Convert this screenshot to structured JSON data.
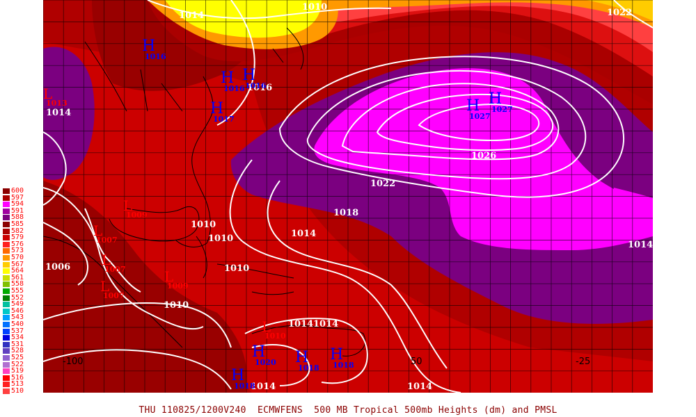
{
  "caption": {
    "valid_time": "THU 110825/1200V240",
    "model": "ECMWFENS",
    "title": "500 MB Tropical 500mb Heights (dm) and PMSL"
  },
  "colorbar": {
    "levels": [
      "600",
      "597",
      "594",
      "591",
      "588",
      "585",
      "582",
      "579",
      "576",
      "573",
      "570",
      "567",
      "564",
      "561",
      "558",
      "555",
      "552",
      "549",
      "546",
      "543",
      "540",
      "537",
      "534",
      "531",
      "528",
      "525",
      "522",
      "519",
      "516",
      "513",
      "510"
    ],
    "colors": [
      "#8b0000",
      "#aa0000",
      "#ff00ff",
      "#a000a0",
      "#7b0080",
      "#8b0000",
      "#aa0000",
      "#cc0000",
      "#ff2020",
      "#ff6a00",
      "#ff9900",
      "#ffcc00",
      "#ffff00",
      "#c8e000",
      "#80c000",
      "#00aa00",
      "#008000",
      "#00c0a0",
      "#00c8c8",
      "#00a0ff",
      "#0070ff",
      "#0040ff",
      "#0000e0",
      "#3030c0",
      "#6040c0",
      "#9060d0",
      "#b070d0",
      "#ff40c0",
      "#ff0000",
      "#ff2020",
      "#ff4040"
    ]
  },
  "map": {
    "longitude_labels": [
      "-100",
      "50",
      "-25"
    ],
    "isobar_labels": [
      "1010",
      "1014",
      "1022",
      "1014",
      "1016",
      "1017",
      "1018",
      "1026",
      "1022",
      "1018",
      "1014",
      "1014",
      "1010",
      "1010",
      "1010",
      "1010",
      "1014",
      "1014",
      "1014",
      "1014",
      "1014",
      "1006"
    ],
    "highs": [
      {
        "symbol": "H",
        "value": "1016"
      },
      {
        "symbol": "H",
        "value": "1016"
      },
      {
        "symbol": "H",
        "value": "1016"
      },
      {
        "symbol": "H",
        "value": "1017"
      },
      {
        "symbol": "H",
        "value": "1027"
      },
      {
        "symbol": "H",
        "value": "1027"
      },
      {
        "symbol": "H",
        "value": "1020"
      },
      {
        "symbol": "H",
        "value": "1018"
      },
      {
        "symbol": "H",
        "value": "1018"
      },
      {
        "symbol": "H",
        "value": "1018"
      }
    ],
    "lows": [
      {
        "symbol": "L",
        "value": "1013"
      },
      {
        "symbol": "L",
        "value": "1009"
      },
      {
        "symbol": "L",
        "value": "1007"
      },
      {
        "symbol": "L",
        "value": "1007"
      },
      {
        "symbol": "L",
        "value": "1007"
      },
      {
        "symbol": "L",
        "value": "1009"
      },
      {
        "symbol": "L",
        "value": "1010"
      }
    ],
    "colors": {
      "yellow": "#ffff00",
      "orange": "#ff9900",
      "light_red": "#ff4040",
      "red": "#cc0000",
      "dark_red": "#8b0000",
      "purple": "#7b0080",
      "magenta": "#ff00ff",
      "contour": "#ffffff",
      "high_marker": "#0000ff",
      "low_marker": "#ff0000"
    }
  }
}
